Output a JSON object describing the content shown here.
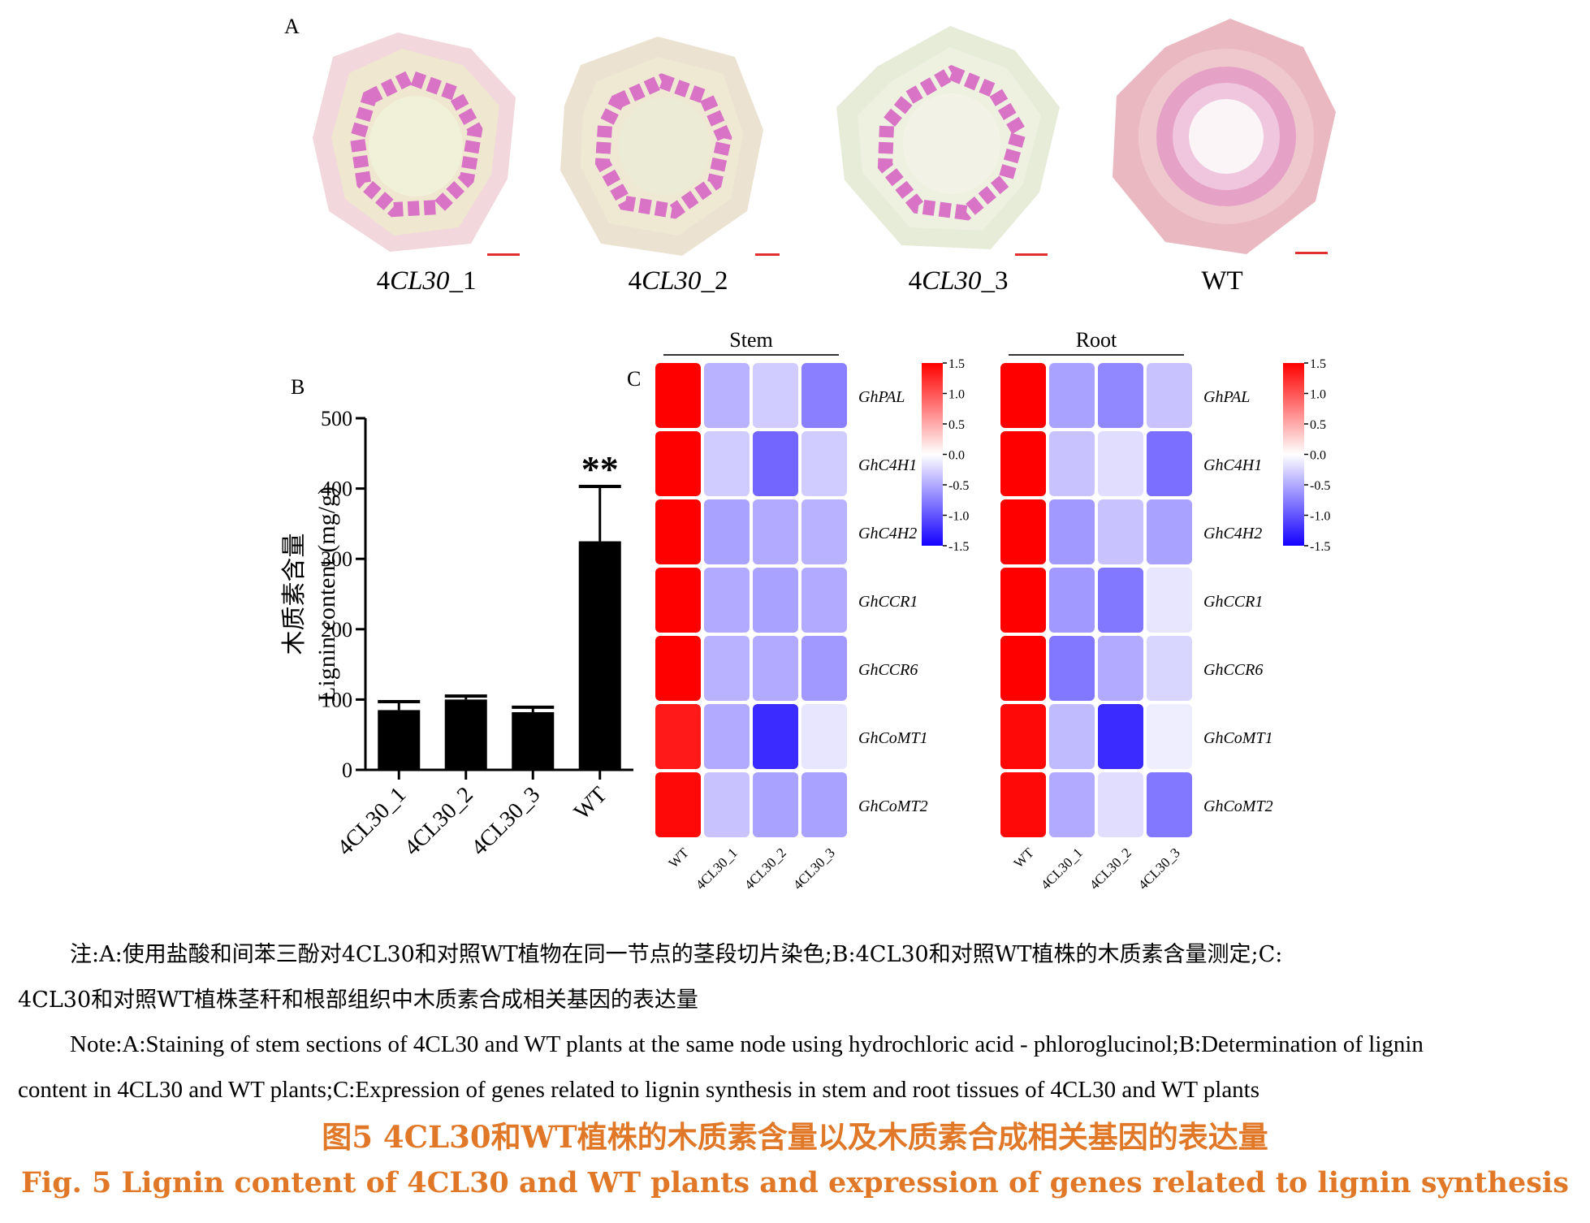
{
  "panels": {
    "a": "A",
    "b": "B",
    "c": "C"
  },
  "panel_a": {
    "samples": [
      {
        "label_prefix": "4",
        "label_gene": "CL30",
        "label_suffix": "_1"
      },
      {
        "label_prefix": "4",
        "label_gene": "CL30",
        "label_suffix": "_2"
      },
      {
        "label_prefix": "4",
        "label_gene": "CL30",
        "label_suffix": "_3"
      },
      {
        "label_prefix": "",
        "label_gene": "",
        "label_suffix": "WT"
      }
    ]
  },
  "chart_data": [
    {
      "type": "bar",
      "panel": "B",
      "categories": [
        "4CL30_1",
        "4CL30_2",
        "4CL30_3",
        "WT"
      ],
      "values": [
        85,
        100,
        82,
        325
      ],
      "errors": [
        12,
        5,
        7,
        78
      ],
      "significance": [
        "",
        "",
        "",
        "**"
      ],
      "ylabel_cn": "木质素含量",
      "ylabel": "Lignin content (mg/g)",
      "ylim": [
        0,
        500
      ],
      "yticks": [
        0,
        100,
        200,
        300,
        400,
        500
      ],
      "color": "#000000"
    },
    {
      "type": "heatmap",
      "panel": "C",
      "title": "Stem",
      "columns": [
        "WT",
        "4CL30_1",
        "4CL30_2",
        "4CL30_3"
      ],
      "rows": [
        "GhPAL",
        "GhC4H1",
        "GhC4H2",
        "GhCCR1",
        "GhCCR6",
        "GhCoMT1",
        "GhCoMT2"
      ],
      "values": [
        [
          1.5,
          -0.45,
          -0.3,
          -0.75
        ],
        [
          1.5,
          -0.3,
          -0.9,
          -0.3
        ],
        [
          1.5,
          -0.55,
          -0.5,
          -0.45
        ],
        [
          1.5,
          -0.5,
          -0.55,
          -0.5
        ],
        [
          1.5,
          -0.45,
          -0.5,
          -0.6
        ],
        [
          1.35,
          -0.5,
          -1.25,
          -0.15
        ],
        [
          1.45,
          -0.35,
          -0.55,
          -0.55
        ]
      ],
      "scale": {
        "ticks": [
          "1.5",
          "1.0",
          "0.5",
          "0.0",
          "-0.5",
          "-1.0",
          "-1.5"
        ],
        "min": -1.5,
        "max": 1.5,
        "low_color": "#1400ff",
        "mid_color": "#ffffff",
        "high_color": "#ff0000"
      }
    },
    {
      "type": "heatmap",
      "panel": "C",
      "title": "Root",
      "columns": [
        "WT",
        "4CL30_1",
        "4CL30_2",
        "4CL30_3"
      ],
      "rows": [
        "GhPAL",
        "GhC4H1",
        "GhC4H2",
        "GhCCR1",
        "GhCCR6",
        "GhCoMT1",
        "GhCoMT2"
      ],
      "values": [
        [
          1.5,
          -0.55,
          -0.7,
          -0.35
        ],
        [
          1.5,
          -0.35,
          -0.2,
          -0.85
        ],
        [
          1.5,
          -0.6,
          -0.35,
          -0.55
        ],
        [
          1.5,
          -0.6,
          -0.8,
          -0.15
        ],
        [
          1.5,
          -0.8,
          -0.5,
          -0.25
        ],
        [
          1.45,
          -0.4,
          -1.25,
          -0.1
        ],
        [
          1.45,
          -0.5,
          -0.2,
          -0.8
        ]
      ],
      "scale": {
        "ticks": [
          "1.5",
          "1.0",
          "0.5",
          "0.0",
          "-0.5",
          "-1.0",
          "-1.5"
        ],
        "min": -1.5,
        "max": 1.5,
        "low_color": "#1400ff",
        "mid_color": "#ffffff",
        "high_color": "#ff0000"
      }
    }
  ],
  "notes": {
    "cn_line1": "注:A:使用盐酸和间苯三酚对4CL30和对照WT植物在同一节点的茎段切片染色;B:4CL30和对照WT植株的木质素含量测定;C:",
    "cn_line2": "4CL30和对照WT植株茎秆和根部组织中木质素合成相关基因的表达量",
    "en_line1": "Note:A:Staining of stem sections of 4CL30 and WT plants at the same node using hydrochloric acid - phloroglucinol;B:Determination of lignin",
    "en_line2": "content in 4CL30 and WT plants;C:Expression of genes related to lignin synthesis in stem and root tissues of 4CL30 and WT plants"
  },
  "caption": {
    "cn": "图5    4CL30和WT植株的木质素含量以及木质素合成相关基因的表达量",
    "en": "Fig. 5    Lignin content of 4CL30 and WT plants and expression of genes related to lignin synthesis"
  },
  "colors": {
    "caption": "#e07828",
    "stain_pink": "#d873c6",
    "scale_bar": "#e23030"
  }
}
